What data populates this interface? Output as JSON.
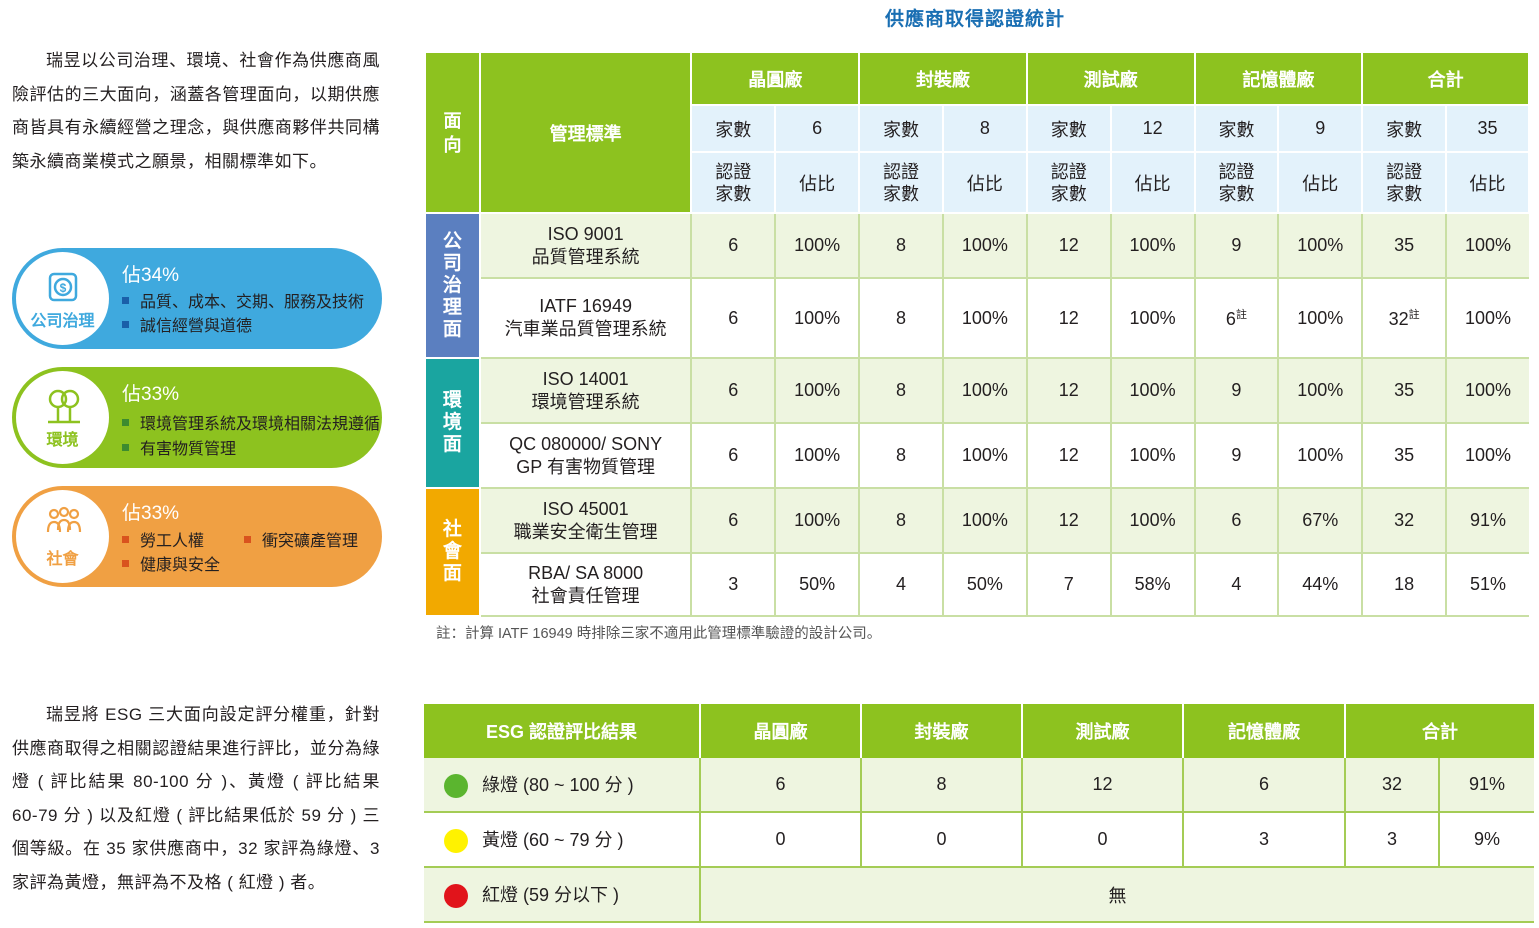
{
  "intro1": "瑞昱以公司治理、環境、社會作為供應商風險評估的三大面向，涵蓋各管理面向，以期供應商皆具有永續經營之理念，與供應商夥伴共同構築永續商業模式之願景，相關標準如下。",
  "pillars": [
    {
      "label": "公司治理",
      "percent": "佔34%",
      "items": [
        "品質、成本、交期、服務及技術",
        "誠信經營與道德"
      ],
      "color": "#3fa9de",
      "icon": "coin-icon"
    },
    {
      "label": "環境",
      "percent": "佔33%",
      "items": [
        "環境管理系統及環境相關法規遵循",
        "有害物質管理"
      ],
      "color": "#8dc21f",
      "icon": "tree-icon"
    },
    {
      "label": "社會",
      "percent": "佔33%",
      "items": [
        "勞工人權",
        "健康與安全",
        "衝突礦產管理"
      ],
      "color": "#f0a043",
      "icon": "people-icon"
    }
  ],
  "table1": {
    "title": "供應商取得認證統計",
    "h_dim": "面向",
    "h_std": "管理標準",
    "groups": [
      "晶圓廠",
      "封裝廠",
      "測試廠",
      "記憶體廠",
      "合計"
    ],
    "count_label": "家數",
    "counts": [
      "6",
      "8",
      "12",
      "9",
      "35"
    ],
    "cert_label": "認證家數",
    "ratio_label": "佔比",
    "dims": [
      "公司治理面",
      "環境面",
      "社會面"
    ],
    "rows": [
      {
        "std1": "ISO 9001",
        "std2": "品質管理系統",
        "cells": [
          "6",
          "100%",
          "8",
          "100%",
          "12",
          "100%",
          "9",
          "100%",
          "35",
          "100%"
        ]
      },
      {
        "std1": "IATF 16949",
        "std2": "汽車業品質管理系統",
        "cells": [
          "6",
          "100%",
          "8",
          "100%",
          "12",
          "100%",
          "6",
          "100%",
          "32",
          "100%"
        ]
      },
      {
        "std1": "ISO 14001",
        "std2": "環境管理系統",
        "cells": [
          "6",
          "100%",
          "8",
          "100%",
          "12",
          "100%",
          "9",
          "100%",
          "35",
          "100%"
        ]
      },
      {
        "std1": "QC 080000/ SONY",
        "std2": "GP 有害物質管理",
        "cells": [
          "6",
          "100%",
          "8",
          "100%",
          "12",
          "100%",
          "9",
          "100%",
          "35",
          "100%"
        ]
      },
      {
        "std1": "ISO 45001",
        "std2": "職業安全衛生管理",
        "cells": [
          "6",
          "100%",
          "8",
          "100%",
          "12",
          "100%",
          "6",
          "67%",
          "32",
          "91%"
        ]
      },
      {
        "std1": "RBA/ SA 8000",
        "std2": "社會責任管理",
        "cells": [
          "3",
          "50%",
          "4",
          "50%",
          "7",
          "58%",
          "4",
          "44%",
          "18",
          "51%"
        ]
      }
    ],
    "footnote_mark": "註",
    "note": "註：計算 IATF 16949 時排除三家不適用此管理標準驗證的設計公司。"
  },
  "intro2": "瑞昱將 ESG 三大面向設定評分權重，針對供應商取得之相關認證結果進行評比，並分為綠燈 ( 評比結果 80-100 分 )、黃燈 ( 評比結果 60-79 分 ) 以及紅燈 ( 評比結果低於 59 分 ) 三個等級。在 35 家供應商中，32 家評為綠燈、3 家評為黃燈，無評為不及格 ( 紅燈 ) 者。",
  "table2": {
    "headers": [
      "ESG 認證評比結果",
      "晶圓廠",
      "封裝廠",
      "測試廠",
      "記憶體廠",
      "合計"
    ],
    "rows": [
      {
        "label": "綠燈 (80 ~ 100 分 )",
        "color": "#5bb52f",
        "cells": [
          "6",
          "8",
          "12",
          "6",
          "32",
          "91%"
        ]
      },
      {
        "label": "黃燈 (60 ~ 79 分 )",
        "color": "#fff200",
        "cells": [
          "0",
          "0",
          "0",
          "3",
          "3",
          "9%"
        ]
      },
      {
        "label": "紅燈 (59 分以下 )",
        "color": "#e1141b",
        "none": "無"
      }
    ]
  }
}
